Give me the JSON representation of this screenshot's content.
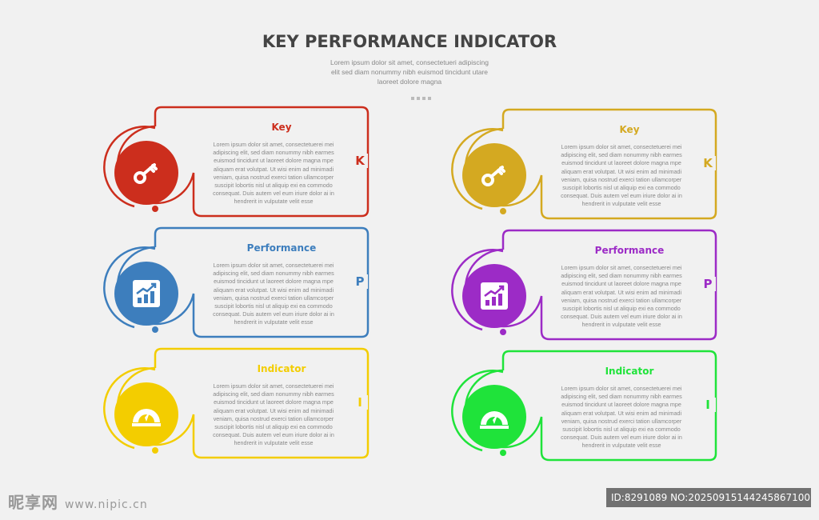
{
  "header": {
    "title": "KEY PERFORMANCE INDICATOR",
    "subtitle": "Lorem ipsum dolor sit amet, consectetueri adipiscing elit sed diam nonummy nibh euismod tincidunt utare laoreet dolore magna"
  },
  "body_text": "Lorem ipsum dolor sit amet, consectetuerei mei adipiscing elit, sed diam nonummy nibh earmes euismod tincidunt ut laoreet dolore magna mpe aliquam erat volutpat. Ut wisi enim ad minimadi veniam, quisa nostrud exerci tation ullamcorper suscipit lobortis nisl ut aliquip exi ea commodo consequat. Duis autem vel eum iriure dolor ai in hendrerit in vulputate velit esse",
  "cards": [
    {
      "title": "Key",
      "letter": "K",
      "color": "#cc2e1d",
      "icon": "key-icon"
    },
    {
      "title": "Performance",
      "letter": "P",
      "color": "#3d7ebd",
      "icon": "chart-icon"
    },
    {
      "title": "Indicator",
      "letter": "I",
      "color": "#f3cd00",
      "icon": "gauge-icon"
    },
    {
      "title": "Key",
      "letter": "K",
      "color": "#d4a921",
      "icon": "key-icon"
    },
    {
      "title": "Performance",
      "letter": "P",
      "color": "#9c2bc6",
      "icon": "chart-icon"
    },
    {
      "title": "Indicator",
      "letter": "I",
      "color": "#1fe33a",
      "icon": "gauge-icon"
    }
  ],
  "watermark": {
    "site": "昵享网",
    "url": "www.nipic.cn",
    "id_text": "ID:8291089 NO:20250915144245867100"
  }
}
